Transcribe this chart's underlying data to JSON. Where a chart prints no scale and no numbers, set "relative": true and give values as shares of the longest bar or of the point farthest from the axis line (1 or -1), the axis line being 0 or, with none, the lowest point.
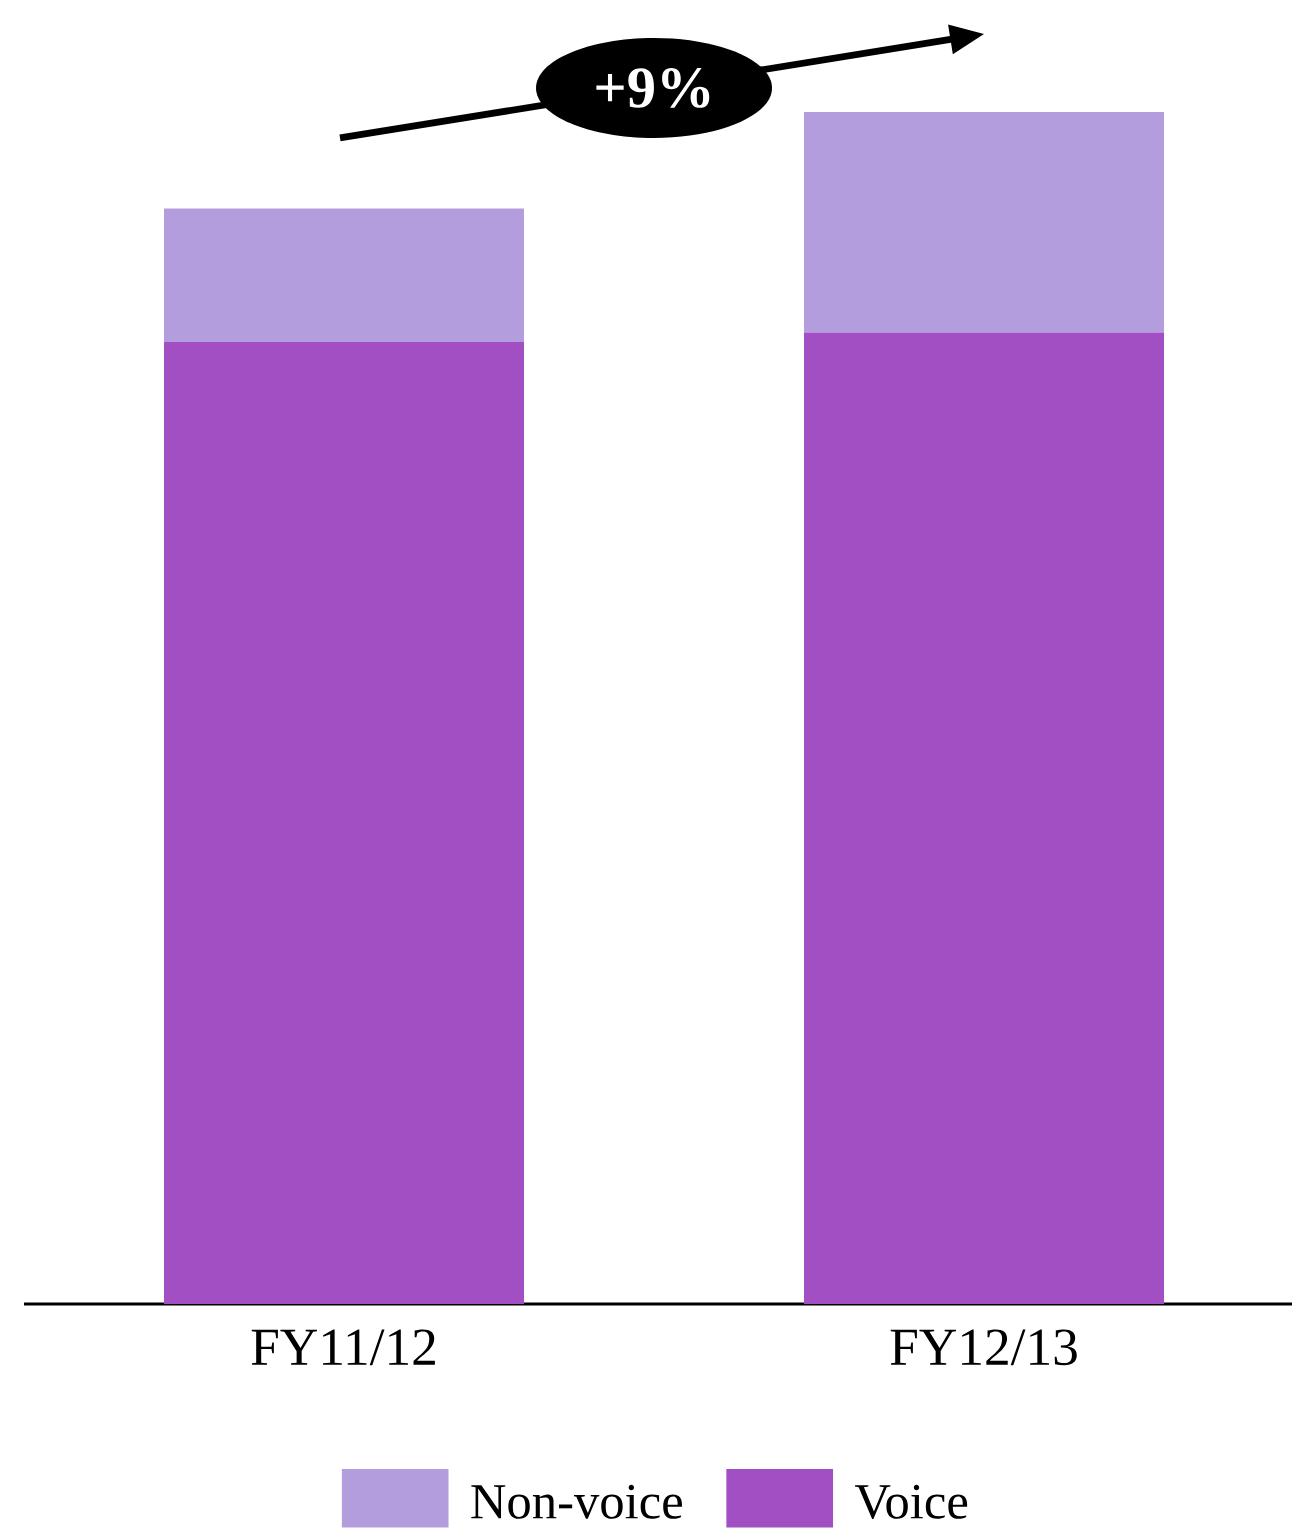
{
  "chart_data": {
    "type": "bar",
    "stacked": true,
    "relative": true,
    "categories": [
      "FY11/12",
      "FY12/13"
    ],
    "series": [
      {
        "name": "Voice",
        "color": "#a24fc4",
        "values": [
          0.807,
          0.815
        ]
      },
      {
        "name": "Non-voice",
        "color": "#b39ddd",
        "values": [
          0.112,
          0.185
        ]
      }
    ],
    "annotations": [
      "+9%"
    ],
    "legend": "bottom",
    "grid": false
  }
}
